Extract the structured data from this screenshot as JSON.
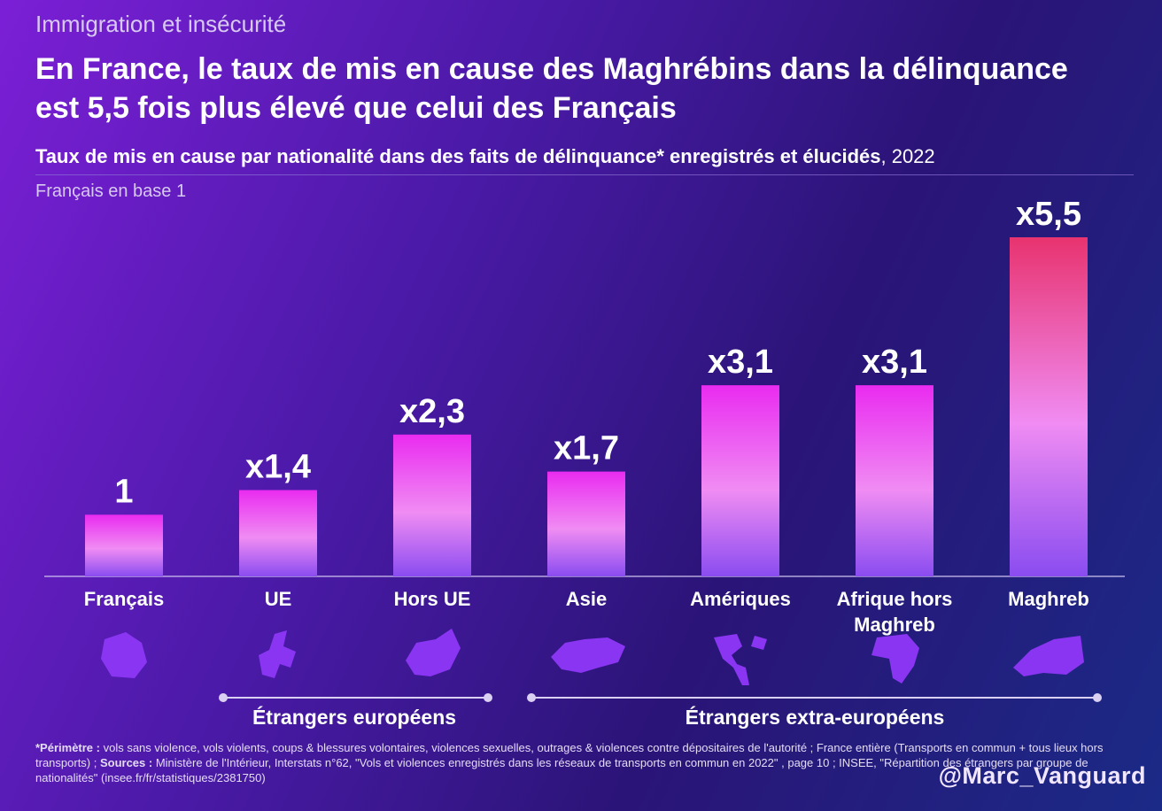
{
  "header": {
    "kicker": "Immigration et insécurité",
    "headline": "En France, le taux de mis en cause des Maghrébins dans la délinquance est 5,5 fois plus élevé que celui des Français",
    "subtitle_bold": "Taux de mis en cause par nationalité dans des faits de délinquance* enregistrés et élucidés",
    "subtitle_rest": ", 2022",
    "base_note": "Français en base 1"
  },
  "chart_data": {
    "type": "bar",
    "title": "Taux de mis en cause par nationalité dans des faits de délinquance* enregistrés et élucidés, 2022",
    "ylabel": "Français en base 1",
    "ylim": [
      0,
      5.5
    ],
    "categories": [
      "Français",
      "UE",
      "Hors UE",
      "Asie",
      "Amériques",
      "Afrique hors Maghreb",
      "Maghreb"
    ],
    "values": [
      1,
      1.4,
      2.3,
      1.7,
      3.1,
      3.1,
      5.5
    ],
    "data_labels": [
      "1",
      "x1,4",
      "x2,3",
      "x1,7",
      "x3,1",
      "x3,1",
      "x5,5"
    ],
    "icons": [
      "france-map-icon",
      "europe-map-icon",
      "world-map-icon",
      "asia-map-icon",
      "americas-map-icon",
      "africa-map-icon",
      "maghreb-map-icon"
    ],
    "colors": {
      "bar_top": "#e92bf0",
      "bar_bottom": "#8a4cf0",
      "max_bar_top": "#e8336f",
      "icon": "#8a35f2"
    }
  },
  "groups": {
    "european": "Étrangers européens",
    "extra_european": "Étrangers extra-européens"
  },
  "footnote": {
    "perimetre_label": "*Périmètre :",
    "perimetre_text": " vols sans violence, vols violents, coups & blessures volontaires, violences sexuelles, outrages & violences contre dépositaires de l'autorité ; France entière (Transports en commun + tous lieux hors transports) ; ",
    "sources_label": "Sources :",
    "sources_text": " Ministère de l'Intérieur, Interstats n°62, \"Vols et violences enregistrés dans les réseaux de transports en commun en 2022\" , page 10 ; INSEE, \"Répartition des étrangers par groupe de nationalités\" (insee.fr/fr/statistiques/2381750)"
  },
  "author": "@Marc_Vanguard"
}
